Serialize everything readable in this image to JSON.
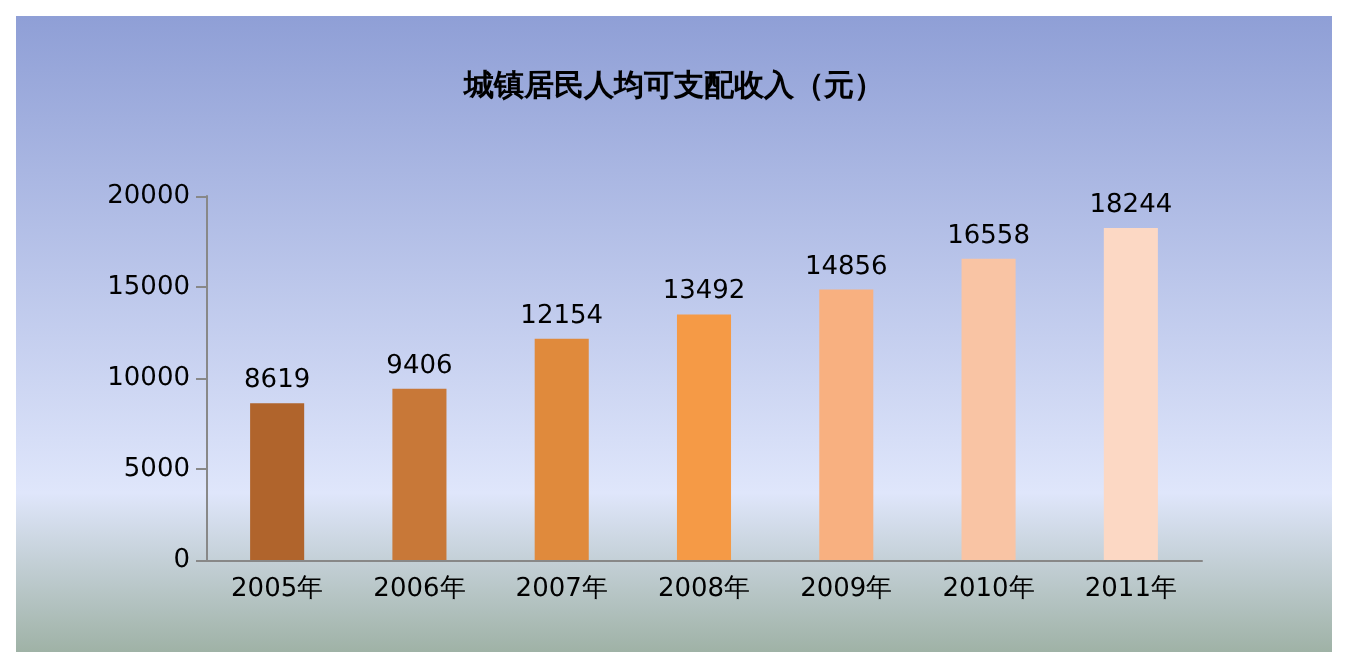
{
  "chart_data": {
    "type": "bar",
    "title": "城镇居民人均可支配收入（元）",
    "categories": [
      "2005年",
      "2006年",
      "2007年",
      "2008年",
      "2009年",
      "2010年",
      "2011年"
    ],
    "values": [
      8619,
      9406,
      12154,
      13492,
      14856,
      16558,
      18244
    ],
    "colors": [
      "#b0642c",
      "#c87838",
      "#e08a3c",
      "#f59a46",
      "#f8b080",
      "#f9c4a4",
      "#fcd8c4"
    ],
    "ylim": [
      0,
      20000
    ],
    "yticks": [
      0,
      5000,
      10000,
      15000,
      20000
    ],
    "grid": false,
    "data_labels": true
  }
}
